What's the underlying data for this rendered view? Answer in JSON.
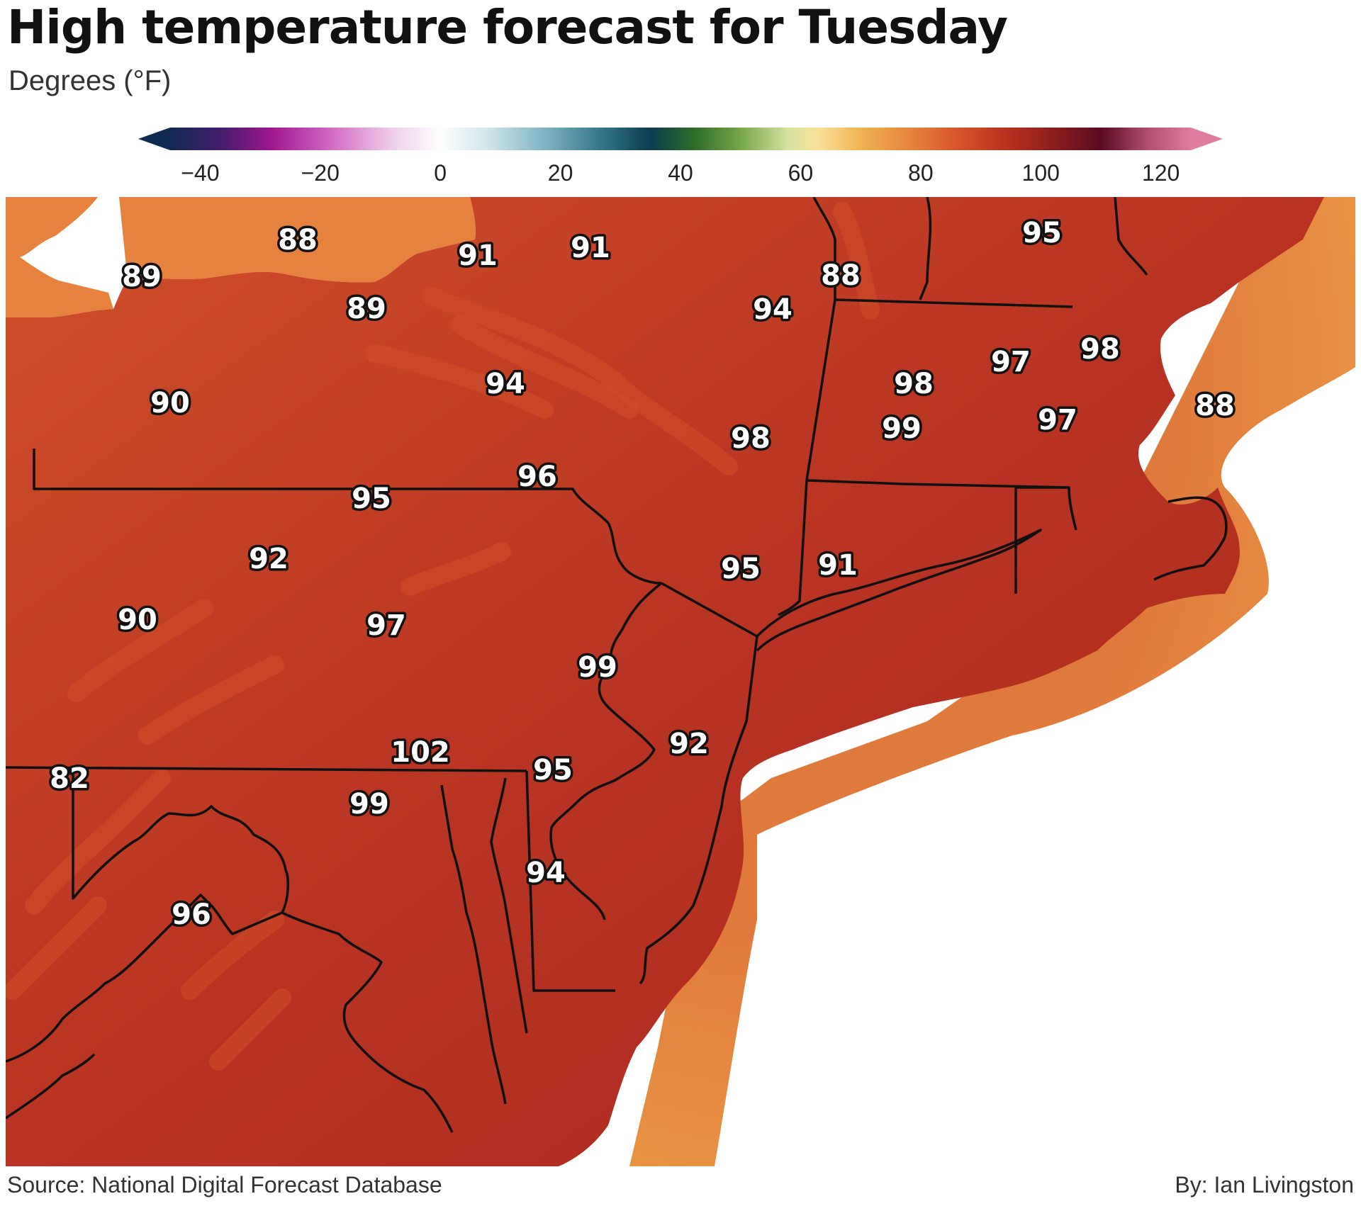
{
  "title": "High temperature forecast for Tuesday",
  "subtitle": "Degrees (°F)",
  "colorbar": {
    "min": -45,
    "max": 125,
    "ticks": [
      "−40",
      "−20",
      "0",
      "20",
      "40",
      "60",
      "80",
      "100",
      "120"
    ],
    "tick_values": [
      -40,
      -20,
      0,
      20,
      40,
      60,
      80,
      100,
      120
    ],
    "stops": [
      {
        "v": -45,
        "c": "#102a52"
      },
      {
        "v": -36,
        "c": "#4a1d6e"
      },
      {
        "v": -28,
        "c": "#a0168f"
      },
      {
        "v": -18,
        "c": "#d46cc6"
      },
      {
        "v": -8,
        "c": "#efcdea"
      },
      {
        "v": 0,
        "c": "#ffffff"
      },
      {
        "v": 8,
        "c": "#cfe5ea"
      },
      {
        "v": 18,
        "c": "#7ab0c0"
      },
      {
        "v": 28,
        "c": "#2d6d84"
      },
      {
        "v": 35,
        "c": "#0c3e50"
      },
      {
        "v": 42,
        "c": "#2c6a2a"
      },
      {
        "v": 50,
        "c": "#77a64a"
      },
      {
        "v": 58,
        "c": "#d6e3a2"
      },
      {
        "v": 63,
        "c": "#fbe099"
      },
      {
        "v": 70,
        "c": "#f0b354"
      },
      {
        "v": 78,
        "c": "#e8853d"
      },
      {
        "v": 86,
        "c": "#d6562b"
      },
      {
        "v": 94,
        "c": "#b8321f"
      },
      {
        "v": 102,
        "c": "#8e1e1c"
      },
      {
        "v": 110,
        "c": "#5b0b22"
      },
      {
        "v": 118,
        "c": "#b35070"
      },
      {
        "v": 125,
        "c": "#e07ca0"
      }
    ]
  },
  "colors": {
    "land": "#b83322",
    "land_warm": "#a8281f",
    "land_cool": "#cf4f2a",
    "ocean": "#e07a3c",
    "ocean_edge": "#eea349",
    "lake": "#e6823d",
    "border": "#111111"
  },
  "temperatures": [
    {
      "id": "ny-ontario",
      "value": "88"
    },
    {
      "id": "ny-niagara",
      "value": "89"
    },
    {
      "id": "ny-central-west",
      "value": "91"
    },
    {
      "id": "ny-adirondack-west",
      "value": "91"
    },
    {
      "id": "vt",
      "value": "88"
    },
    {
      "id": "nh-me",
      "value": "95"
    },
    {
      "id": "ny-finger-lakes",
      "value": "89"
    },
    {
      "id": "ny-hudson",
      "value": "94"
    },
    {
      "id": "ma-central",
      "value": "97"
    },
    {
      "id": "ma-boston",
      "value": "98"
    },
    {
      "id": "ma-west",
      "value": "98"
    },
    {
      "id": "ny-southern-tier",
      "value": "94"
    },
    {
      "id": "pa-west-north",
      "value": "90"
    },
    {
      "id": "ma-cape",
      "value": "88"
    },
    {
      "id": "ri",
      "value": "97"
    },
    {
      "id": "ct",
      "value": "99"
    },
    {
      "id": "ny-lower-hudson",
      "value": "98"
    },
    {
      "id": "pa-northeast",
      "value": "96"
    },
    {
      "id": "pa-central-north",
      "value": "95"
    },
    {
      "id": "pa-central-west",
      "value": "92"
    },
    {
      "id": "nyc",
      "value": "95"
    },
    {
      "id": "long-island",
      "value": "91"
    },
    {
      "id": "pa-west-south",
      "value": "90"
    },
    {
      "id": "pa-south-central",
      "value": "97"
    },
    {
      "id": "philadelphia",
      "value": "99"
    },
    {
      "id": "nj-shore",
      "value": "92"
    },
    {
      "id": "md-baltimore",
      "value": "102"
    },
    {
      "id": "de",
      "value": "95"
    },
    {
      "id": "wv",
      "value": "82"
    },
    {
      "id": "dc",
      "value": "99"
    },
    {
      "id": "de-south",
      "value": "94"
    },
    {
      "id": "va",
      "value": "96"
    }
  ],
  "source": "Source: National Digital Forecast Database",
  "byline": "By: Ian Livingston"
}
